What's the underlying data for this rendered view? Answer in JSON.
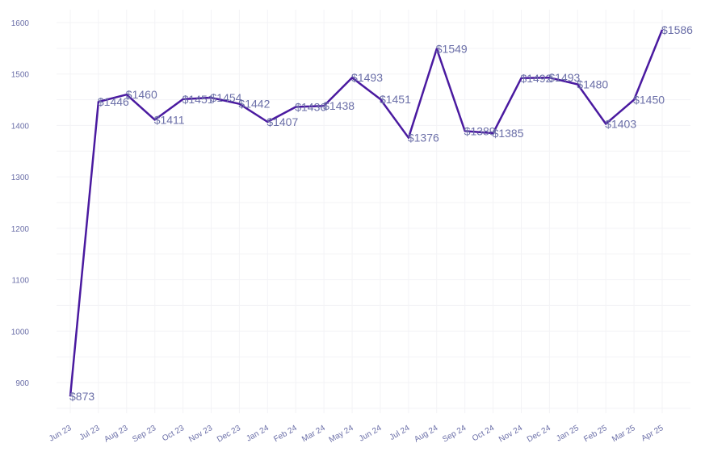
{
  "chart_data": {
    "type": "line",
    "categories": [
      "Jun 23",
      "Jul 23",
      "Aug 23",
      "Sep 23",
      "Oct 23",
      "Nov 23",
      "Dec 23",
      "Jan 24",
      "Feb 24",
      "Mar 24",
      "May 24",
      "Jun 24",
      "Jul 24",
      "Aug 24",
      "Sep 24",
      "Oct 24",
      "Nov 24",
      "Dec 24",
      "Jan 25",
      "Feb 25",
      "Mar 25",
      "Apr 25"
    ],
    "values": [
      873,
      1446,
      1460,
      1411,
      1451,
      1454,
      1442,
      1407,
      1436,
      1438,
      1493,
      1451,
      1376,
      1549,
      1389,
      1385,
      1492,
      1493,
      1480,
      1403,
      1450,
      1586
    ],
    "labels": [
      "$873",
      "$1446",
      "$1460",
      "$1411",
      "$1451",
      "$1454",
      "$1442",
      "$1407",
      "$1436",
      "$1438",
      "$1493",
      "$1451",
      "$1376",
      "$1549",
      "$1389",
      "$1385",
      "$1492",
      "$1493",
      "$1480",
      "$1403",
      "$1450",
      "$1586"
    ],
    "y_ticks": [
      "900",
      "1000",
      "1100",
      "1200",
      "1300",
      "1400",
      "1500",
      "1600"
    ],
    "ylim": [
      840,
      1620
    ],
    "title": "",
    "xlabel": "",
    "ylabel": "",
    "grid": true,
    "line_color": "#4a1aa0"
  }
}
